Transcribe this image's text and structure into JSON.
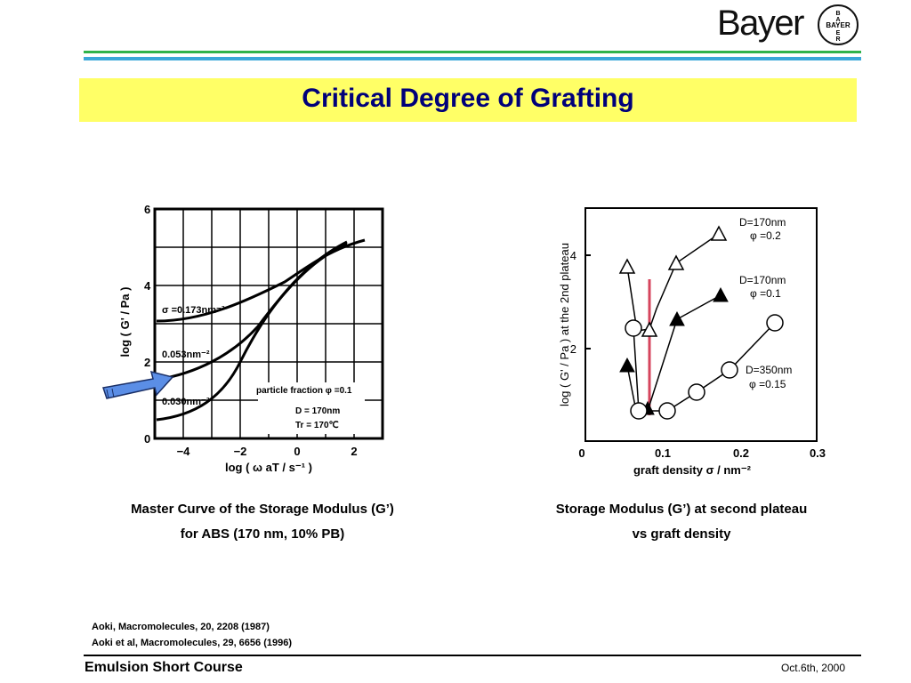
{
  "header": {
    "logo_text": "Bayer",
    "seal_text": "BAYER"
  },
  "title": "Critical Degree of Grafting",
  "left_figure": {
    "y_axis_label": "log ( G' / Pa )",
    "x_axis_label": "log ( ω aT / s⁻¹ )",
    "x_ticks": [
      "−4",
      "−2",
      "0",
      "2"
    ],
    "y_ticks": [
      "0",
      "2",
      "4",
      "6"
    ],
    "curve_labels": [
      "σ =0.173nm⁻²",
      "0.053nm⁻²",
      "0.030nm⁻²"
    ],
    "info_lines": [
      "particle fraction  φ =0.1",
      "D = 170nm",
      "Tr = 170℃"
    ]
  },
  "right_figure": {
    "y_axis_label": "log ( G' / Pa ) at the 2nd plateau",
    "x_axis_label": "graft density  σ / nm⁻²",
    "x_ticks": [
      "0",
      "0.1",
      "0.2",
      "0.3"
    ],
    "y_ticks": [
      "2",
      "4"
    ],
    "legend": [
      {
        "line1": "D=170nm",
        "line2": "φ =0.2"
      },
      {
        "line1": "D=170nm",
        "line2": "φ =0.1"
      },
      {
        "line1": "D=350nm",
        "line2": "φ =0.15"
      }
    ]
  },
  "captions": {
    "left": [
      "Master Curve of the Storage Modulus (G’)",
      "for ABS (170 nm, 10% PB)"
    ],
    "right": [
      "Storage Modulus (G’) at second plateau",
      "vs graft density"
    ]
  },
  "references": [
    "Aoki, Macromolecules, 20, 2208 (1987)",
    "Aoki et al, Macromolecules, 29, 6656 (1996)"
  ],
  "footer": {
    "course": "Emulsion Short Course",
    "date": "Oct.6th, 2000"
  },
  "colors": {
    "title_bg": "#ffff66",
    "title_text": "#00007a",
    "green_band": "#2fb34a",
    "blue_band": "#3aa7d8",
    "arrow": "#5b8ee6",
    "marker_line": "#d6455d"
  }
}
